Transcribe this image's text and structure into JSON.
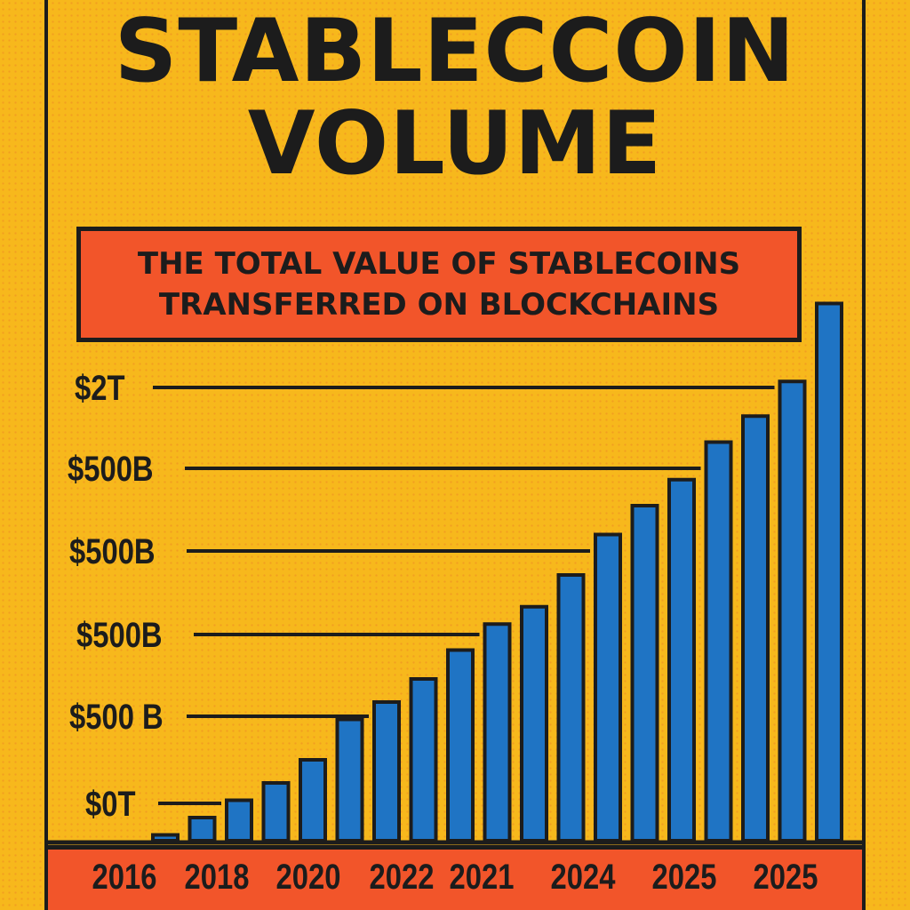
{
  "title_line1": "STABLECCOIN",
  "title_line2": "VOLUME",
  "subtitle_line1": "THE TOTAL VALUE OF STABLECOINS",
  "subtitle_line2": "TRANSFERRED ON BLOCKCHAINS",
  "colors": {
    "background": "#f7b81c",
    "bar": "#1f74c4",
    "accent": "#f2552a",
    "ink": "#1c1c1c"
  },
  "chart_data": {
    "type": "bar",
    "title": "STABLECCOIN VOLUME",
    "subtitle": "THE TOTAL VALUE OF STABLECOINS TRANSFERRED ON BLOCKCHAINS",
    "y_tick_labels": [
      "$0T",
      "$500 B",
      "$500B",
      "$500B",
      "$500B",
      "$2T"
    ],
    "x_tick_labels": [
      "2016",
      "2018",
      "2020",
      "2022",
      "2021",
      "2024",
      "2025",
      "2025"
    ],
    "values": [
      0.1,
      0.4,
      0.7,
      1.0,
      1.4,
      2.1,
      2.4,
      2.8,
      3.3,
      3.75,
      4.05,
      4.6,
      5.3,
      5.8,
      6.25,
      6.9,
      7.35,
      7.95,
      9.3
    ],
    "grid": true,
    "legend": "none",
    "xlabel": "",
    "ylabel": ""
  }
}
